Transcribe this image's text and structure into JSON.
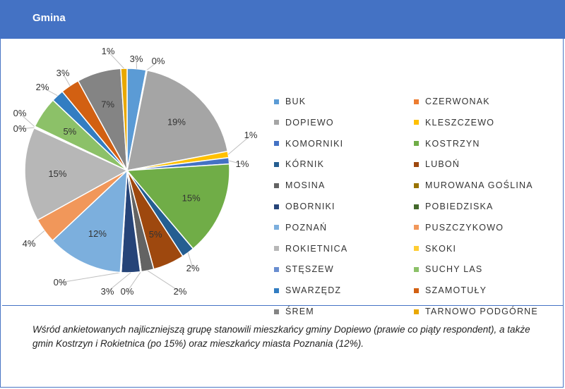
{
  "header": {
    "title": "Gmina"
  },
  "chart_data": {
    "type": "pie",
    "title": "",
    "categories": [
      "BUK",
      "CZERWONAK",
      "DOPIEWO",
      "KLESZCZEWO",
      "KOMORNIKI",
      "KOSTRZYN",
      "KÓRNIK",
      "LUBOŃ",
      "MOSINA",
      "MUROWANA GOŚLINA",
      "OBORNIKI",
      "POBIEDZISKA",
      "POZNAŃ",
      "PUSZCZYKOWO",
      "ROKIETNICA",
      "SKOKI",
      "STĘSZEW",
      "SUCHY LAS",
      "SWARZĘDZ",
      "SZAMOTUŁY",
      "ŚREM",
      "TARNOWO PODGÓRNE"
    ],
    "values": [
      3,
      0,
      19,
      1,
      1,
      15,
      2,
      5,
      2,
      0,
      3,
      0,
      12,
      4,
      15,
      0,
      0,
      5,
      2,
      3,
      7,
      1
    ],
    "labels": [
      "3%",
      "0%",
      "19%",
      "1%",
      "1%",
      "15%",
      "2%",
      "5%",
      "2%",
      "0%",
      "3%",
      "0%",
      "12%",
      "4%",
      "15%",
      "0%",
      "0%",
      "5%",
      "2%",
      "3%",
      "7%",
      "1%"
    ],
    "colors": [
      "#5b9bd5",
      "#ed7d31",
      "#a5a5a5",
      "#ffc000",
      "#4472c4",
      "#70ad47",
      "#255e91",
      "#9e480e",
      "#636363",
      "#997300",
      "#264478",
      "#43682b",
      "#7cafdd",
      "#f1975a",
      "#b7b7b7",
      "#ffcd33",
      "#698ed0",
      "#8cc168",
      "#327dc2",
      "#d26012",
      "#848484",
      "#e9a800"
    ],
    "legend_position": "right"
  },
  "footer": {
    "text": "Wśród ankietowanych najliczniejszą grupę stanowili mieszkańcy gminy Dopiewo (prawie co piąty respondent), a także gmin Kostrzyn i Rokietnica (po 15%) oraz mieszkańcy miasta Poznania (12%)."
  }
}
